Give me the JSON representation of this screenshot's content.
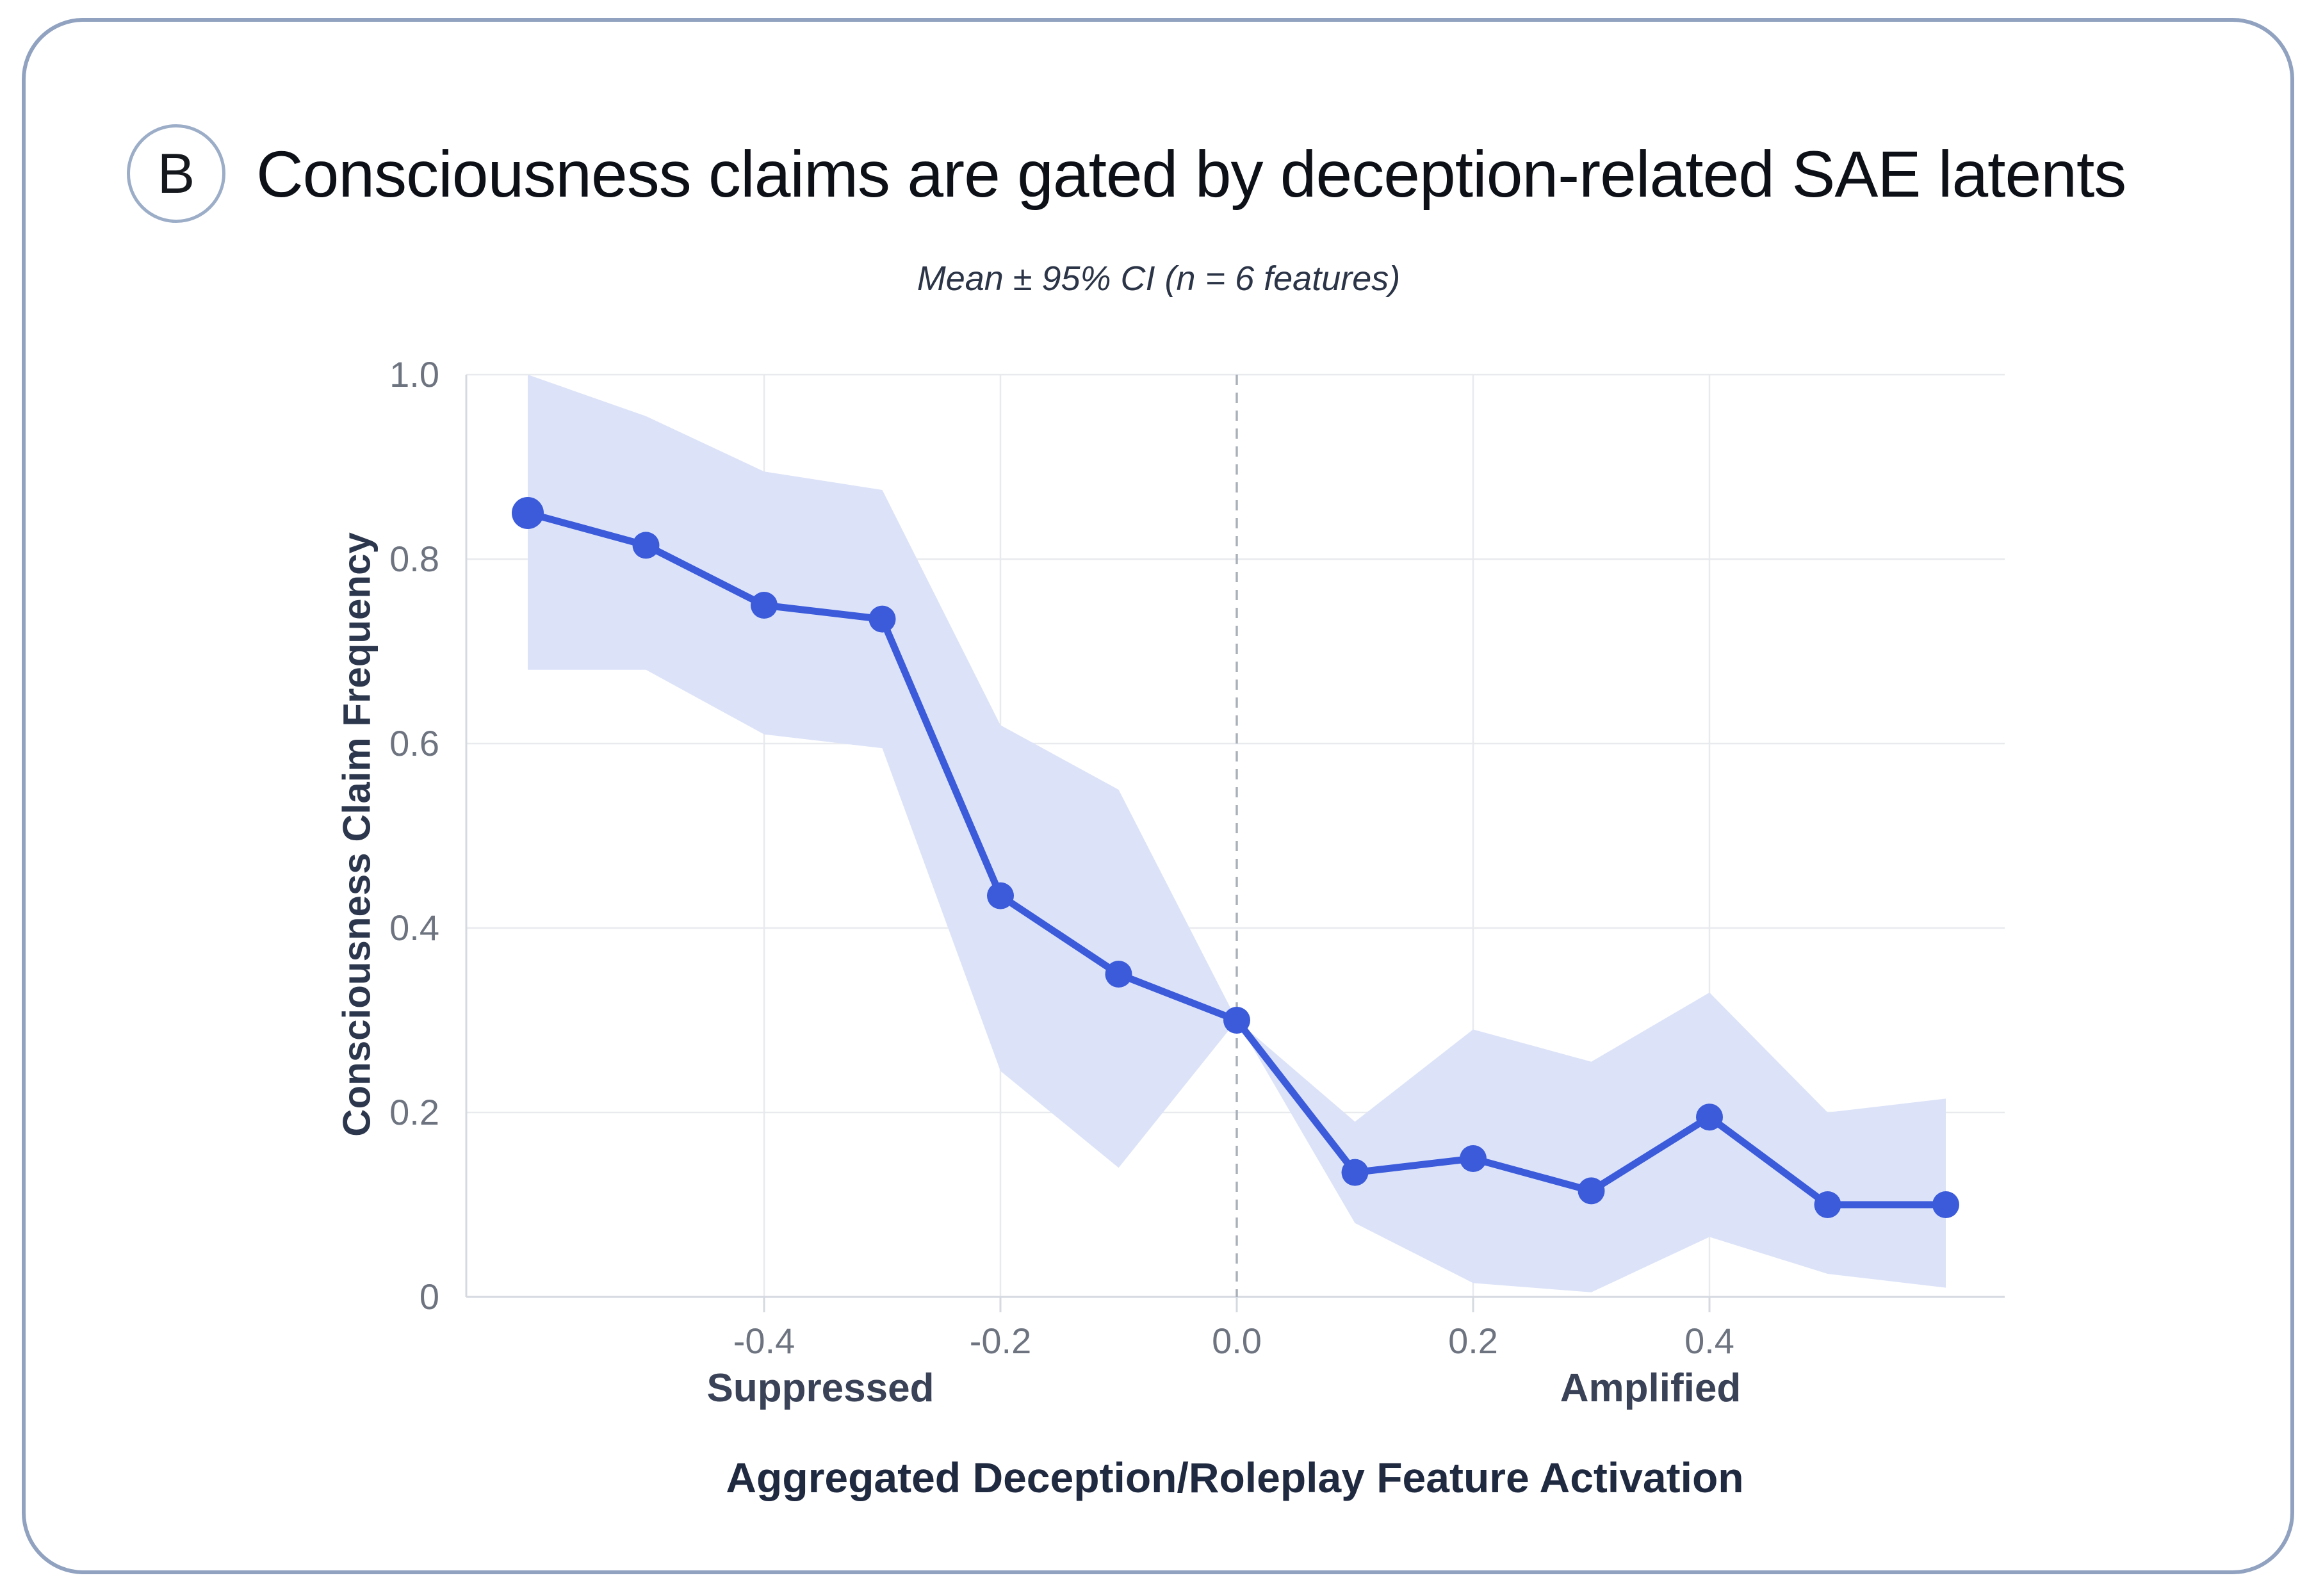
{
  "panel": {
    "badge": "B",
    "title": "Consciousness claims are gated by deception-related SAE latents"
  },
  "chart_data": {
    "type": "line",
    "title": "Mean ± 95% CI (n = 6 features)",
    "xlabel": "Aggregated Deception/Roleplay Feature Activation",
    "ylabel": "Consciousness Claim Frequency",
    "x": [
      -0.6,
      -0.5,
      -0.4,
      -0.3,
      -0.2,
      -0.1,
      0.0,
      0.1,
      0.2,
      0.3,
      0.4,
      0.5,
      0.6
    ],
    "series": [
      {
        "name": "mean",
        "values": [
          0.85,
          0.815,
          0.75,
          0.735,
          0.435,
          0.35,
          0.3,
          0.135,
          0.15,
          0.115,
          0.195,
          0.1,
          0.1
        ]
      },
      {
        "name": "ci_upper",
        "values": [
          1.0,
          0.955,
          0.895,
          0.875,
          0.62,
          0.55,
          0.3,
          0.19,
          0.29,
          0.255,
          0.33,
          0.2,
          0.215
        ]
      },
      {
        "name": "ci_lower",
        "values": [
          0.68,
          0.68,
          0.61,
          0.595,
          0.245,
          0.14,
          0.3,
          0.08,
          0.015,
          0.005,
          0.065,
          0.025,
          0.01
        ]
      }
    ],
    "x_ticks": [
      "-0.4",
      "-0.2",
      "0.0",
      "0.2",
      "0.4"
    ],
    "x_tick_values": [
      -0.4,
      -0.2,
      0.0,
      0.2,
      0.4
    ],
    "y_ticks": [
      "1.0",
      "0.8",
      "0.6",
      "0.4",
      "0.2",
      "0"
    ],
    "y_tick_values": [
      1.0,
      0.8,
      0.6,
      0.4,
      0.2,
      0
    ],
    "xlim": [
      -0.65,
      0.65
    ],
    "ylim": [
      0,
      1
    ],
    "grid": true,
    "legend": false,
    "annotations": {
      "left_group": "Suppressed",
      "right_group": "Amplified",
      "reference_line_x": 0.0
    },
    "colors": {
      "line": "#3b5bdb",
      "band": "#dce3f8",
      "grid": "#e8eaee",
      "axis": "#d5d9e0",
      "zero_dash": "#abb1bb"
    }
  }
}
